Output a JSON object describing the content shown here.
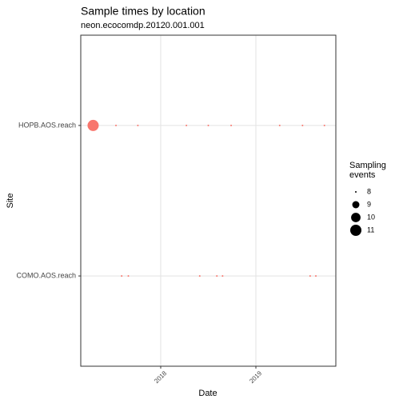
{
  "chart_data": {
    "type": "scatter",
    "title": "Sample times by location",
    "subtitle": "neon.ecocomdp.20120.001.001",
    "x_label": "Date",
    "y_label": "Site",
    "y_categories": [
      "COMO.AOS.reach",
      "HOPB.AOS.reach"
    ],
    "x": [
      2017.29,
      2017.53,
      2017.76,
      2018.27,
      2018.5,
      2018.74,
      2019.25,
      2019.49,
      2019.72,
      2017.59,
      2017.66,
      2018.41,
      2018.59,
      2018.65,
      2019.57,
      2019.63
    ],
    "y": [
      "HOPB.AOS.reach",
      "HOPB.AOS.reach",
      "HOPB.AOS.reach",
      "HOPB.AOS.reach",
      "HOPB.AOS.reach",
      "HOPB.AOS.reach",
      "HOPB.AOS.reach",
      "HOPB.AOS.reach",
      "HOPB.AOS.reach",
      "COMO.AOS.reach",
      "COMO.AOS.reach",
      "COMO.AOS.reach",
      "COMO.AOS.reach",
      "COMO.AOS.reach",
      "COMO.AOS.reach",
      "COMO.AOS.reach"
    ],
    "sizes": [
      11,
      8,
      8,
      8,
      8,
      8,
      8,
      8,
      8,
      8,
      8,
      8,
      8,
      8,
      8,
      8
    ],
    "color": "#f8766d",
    "xlim": [
      2017.16,
      2019.84
    ],
    "xticks": [
      2018,
      2019
    ],
    "grid": true,
    "size_legend": {
      "title": "Sampling events",
      "values": [
        8,
        9,
        10,
        11
      ]
    }
  }
}
